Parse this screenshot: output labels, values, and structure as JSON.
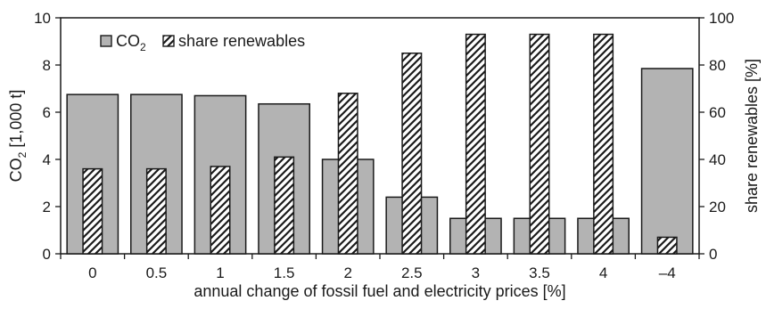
{
  "chart_data": {
    "type": "bar",
    "categories": [
      "0",
      "0.5",
      "1",
      "1.5",
      "2",
      "2.5",
      "3",
      "3.5",
      "4",
      "–4"
    ],
    "xlabel": "annual change of fossil fuel and electricity prices [%]",
    "ylabel_left": {
      "base": "CO",
      "sub": "2",
      "rest": " [1,000 t]"
    },
    "ylabel_right": "share renewables [%]",
    "ylim_left": [
      0,
      10
    ],
    "yticks_left": [
      0,
      2,
      4,
      6,
      8,
      10
    ],
    "ylim_right": [
      0,
      100
    ],
    "yticks_right": [
      0,
      20,
      40,
      60,
      80,
      100
    ],
    "grid": false,
    "legend_position": "top-left",
    "series": [
      {
        "name": "CO2",
        "legend": {
          "base": "CO",
          "sub": "2"
        },
        "axis": "left",
        "fill": "solid",
        "color": "#b3b3b3",
        "values": [
          6.75,
          6.75,
          6.7,
          6.35,
          4.0,
          2.4,
          1.5,
          1.5,
          1.5,
          7.85
        ]
      },
      {
        "name": "share renewables",
        "legend": {
          "base": "share renewables"
        },
        "axis": "right",
        "fill": "hatched",
        "color": "#1a1a1a",
        "values": [
          36,
          36,
          37,
          41,
          68,
          85,
          93,
          93,
          93,
          7
        ]
      }
    ]
  }
}
